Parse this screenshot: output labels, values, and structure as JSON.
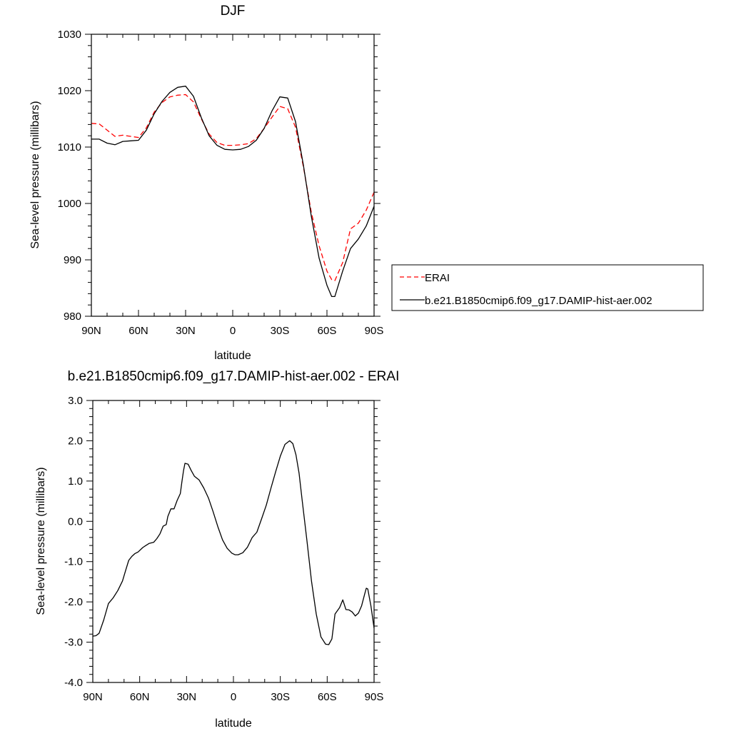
{
  "chart_data": [
    {
      "type": "line",
      "title": "DJF",
      "xlabel": "latitude",
      "ylabel": "Sea-level pressure (millibars)",
      "xlim": [
        90,
        -90
      ],
      "ylim": [
        980,
        1030
      ],
      "xticks": [
        90,
        60,
        30,
        0,
        -30,
        -60,
        -90
      ],
      "xticklabels": [
        "90N",
        "60N",
        "30N",
        "0",
        "30S",
        "60S",
        "90S"
      ],
      "yticks": [
        980,
        990,
        1000,
        1010,
        1020,
        1030
      ],
      "yticklabels": [
        "980",
        "990",
        "1000",
        "1010",
        "1020",
        "1030"
      ],
      "grid": false,
      "legend": "outside-right",
      "series": [
        {
          "name": "ERAI",
          "color": "#ff0000",
          "dash": "dashed",
          "x": [
            90,
            85,
            80,
            75,
            70,
            65,
            60,
            55,
            50,
            45,
            40,
            35,
            30,
            25,
            20,
            15,
            10,
            5,
            0,
            -5,
            -10,
            -15,
            -20,
            -25,
            -30,
            -35,
            -40,
            -45,
            -50,
            -55,
            -60,
            -63,
            -65,
            -70,
            -75,
            -80,
            -85,
            -90
          ],
          "y": [
            1014.2,
            1014.1,
            1013.0,
            1011.9,
            1012.1,
            1011.9,
            1011.7,
            1013.4,
            1016.2,
            1017.9,
            1018.9,
            1019.2,
            1019.3,
            1018.0,
            1015.0,
            1012.3,
            1010.8,
            1010.3,
            1010.3,
            1010.4,
            1010.6,
            1011.5,
            1013.3,
            1015.3,
            1017.2,
            1016.8,
            1013.5,
            1006.5,
            998.5,
            992.5,
            988.0,
            986.5,
            986.3,
            989.5,
            995.5,
            996.5,
            998.8,
            1002.0
          ]
        },
        {
          "name": "b.e21.B1850cmip6.f09_g17.DAMIP-hist-aer.002",
          "color": "#000000",
          "dash": "solid",
          "x": [
            90,
            85,
            80,
            75,
            70,
            65,
            60,
            55,
            50,
            45,
            40,
            35,
            30,
            25,
            20,
            15,
            10,
            5,
            0,
            -5,
            -10,
            -15,
            -20,
            -25,
            -30,
            -35,
            -40,
            -45,
            -50,
            -55,
            -60,
            -63,
            -65,
            -70,
            -75,
            -80,
            -85,
            -90
          ],
          "y": [
            1011.4,
            1011.4,
            1010.7,
            1010.4,
            1011.0,
            1011.1,
            1011.2,
            1013.0,
            1015.9,
            1018.1,
            1019.7,
            1020.6,
            1020.8,
            1019.0,
            1015.2,
            1012.0,
            1010.3,
            1009.6,
            1009.5,
            1009.6,
            1010.1,
            1011.2,
            1013.3,
            1016.4,
            1018.9,
            1018.7,
            1014.5,
            1006.8,
            997.8,
            990.3,
            985.5,
            983.5,
            983.5,
            988.0,
            992.0,
            993.7,
            996.0,
            999.5
          ]
        }
      ]
    },
    {
      "type": "line",
      "title": "b.e21.B1850cmip6.f09_g17.DAMIP-hist-aer.002 - ERAI",
      "xlabel": "latitude",
      "ylabel": "Sea-level pressure (millibars)",
      "xlim": [
        90,
        -90
      ],
      "ylim": [
        -4.0,
        3.0
      ],
      "xticks": [
        90,
        60,
        30,
        0,
        -30,
        -60,
        -90
      ],
      "xticklabels": [
        "90N",
        "60N",
        "30N",
        "0",
        "30S",
        "60S",
        "90S"
      ],
      "yticks": [
        -4,
        -3,
        -2,
        -1,
        0,
        1,
        2,
        3
      ],
      "yticklabels": [
        "-4.0",
        "-3.0",
        "-2.0",
        "-1.0",
        "0.0",
        "1.0",
        "2.0",
        "3.0"
      ],
      "grid": false,
      "series": [
        {
          "color": "#000000",
          "dash": "solid",
          "x": [
            90,
            88,
            86,
            83,
            80,
            77,
            74,
            71,
            69,
            67,
            65,
            63,
            61,
            58,
            56,
            54,
            51,
            49,
            47,
            45,
            43,
            42,
            40,
            38,
            36,
            34,
            33,
            32,
            31,
            29,
            27,
            25,
            22,
            19,
            16,
            13,
            10,
            7,
            4,
            1,
            -1,
            -3,
            -6,
            -9,
            -12,
            -15,
            -18,
            -21,
            -24,
            -27,
            -30,
            -33,
            -36,
            -38,
            -40,
            -42,
            -44,
            -47,
            -50,
            -53,
            -56,
            -59,
            -61,
            -63,
            -65,
            -68,
            -70,
            -72,
            -74,
            -76,
            -78,
            -80,
            -82,
            -84,
            -85,
            -86,
            -88,
            -90
          ],
          "y": [
            -2.85,
            -2.84,
            -2.78,
            -2.45,
            -2.04,
            -1.9,
            -1.72,
            -1.48,
            -1.22,
            -0.97,
            -0.87,
            -0.8,
            -0.76,
            -0.65,
            -0.6,
            -0.55,
            -0.52,
            -0.43,
            -0.31,
            -0.12,
            -0.08,
            0.12,
            0.31,
            0.31,
            0.52,
            0.69,
            0.98,
            1.25,
            1.44,
            1.42,
            1.26,
            1.12,
            1.03,
            0.83,
            0.58,
            0.24,
            -0.13,
            -0.46,
            -0.67,
            -0.79,
            -0.83,
            -0.83,
            -0.78,
            -0.64,
            -0.4,
            -0.27,
            0.06,
            0.4,
            0.82,
            1.23,
            1.62,
            1.91,
            2.0,
            1.93,
            1.65,
            1.2,
            0.52,
            -0.47,
            -1.49,
            -2.3,
            -2.87,
            -3.05,
            -3.06,
            -2.92,
            -2.3,
            -2.14,
            -1.95,
            -2.19,
            -2.2,
            -2.25,
            -2.35,
            -2.28,
            -2.1,
            -1.8,
            -1.66,
            -1.68,
            -2.1,
            -2.65
          ]
        }
      ]
    }
  ]
}
